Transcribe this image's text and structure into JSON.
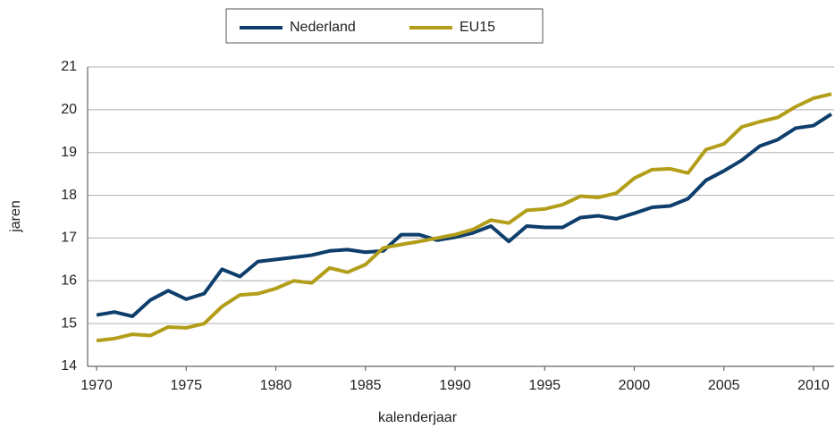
{
  "chart_data": {
    "type": "line",
    "x": [
      1970,
      1971,
      1972,
      1973,
      1974,
      1975,
      1976,
      1977,
      1978,
      1979,
      1980,
      1981,
      1982,
      1983,
      1984,
      1985,
      1986,
      1987,
      1988,
      1989,
      1990,
      1991,
      1992,
      1993,
      1994,
      1995,
      1996,
      1997,
      1998,
      1999,
      2000,
      2001,
      2002,
      2003,
      2004,
      2005,
      2006,
      2007,
      2008,
      2009,
      2010,
      2011
    ],
    "series": [
      {
        "name": "Nederland",
        "color": "#0e3e6b",
        "values": [
          15.2,
          15.27,
          15.17,
          15.55,
          15.77,
          15.57,
          15.7,
          16.27,
          16.1,
          16.45,
          16.5,
          16.55,
          16.6,
          16.7,
          16.73,
          16.67,
          16.7,
          17.08,
          17.08,
          16.95,
          17.02,
          17.12,
          17.28,
          16.92,
          17.28,
          17.25,
          17.25,
          17.48,
          17.52,
          17.45,
          17.58,
          17.72,
          17.75,
          17.92,
          18.35,
          18.57,
          18.82,
          19.15,
          19.3,
          19.57,
          19.63,
          19.9
        ]
      },
      {
        "name": "EU15",
        "color": "#b39e1a",
        "values": [
          14.6,
          14.65,
          14.75,
          14.72,
          14.92,
          14.9,
          15.0,
          15.4,
          15.67,
          15.7,
          15.82,
          16.0,
          15.95,
          16.3,
          16.2,
          16.38,
          16.77,
          16.85,
          16.92,
          17.0,
          17.08,
          17.2,
          17.42,
          17.35,
          17.65,
          17.68,
          17.78,
          17.98,
          17.95,
          18.05,
          18.4,
          18.6,
          18.62,
          18.52,
          19.07,
          19.2,
          19.6,
          19.72,
          19.82,
          20.07,
          20.27,
          20.37
        ]
      }
    ],
    "xlabel": "kalenderjaar",
    "ylabel": "jaren",
    "xlim": [
      1969.5,
      2011.15
    ],
    "xticks": [
      1970,
      1975,
      1980,
      1985,
      1990,
      1995,
      2000,
      2005,
      2010
    ],
    "ylim": [
      14,
      21
    ],
    "yticks": [
      14,
      15,
      16,
      17,
      18,
      19,
      20,
      21
    ],
    "grid": true,
    "legend": "top"
  }
}
